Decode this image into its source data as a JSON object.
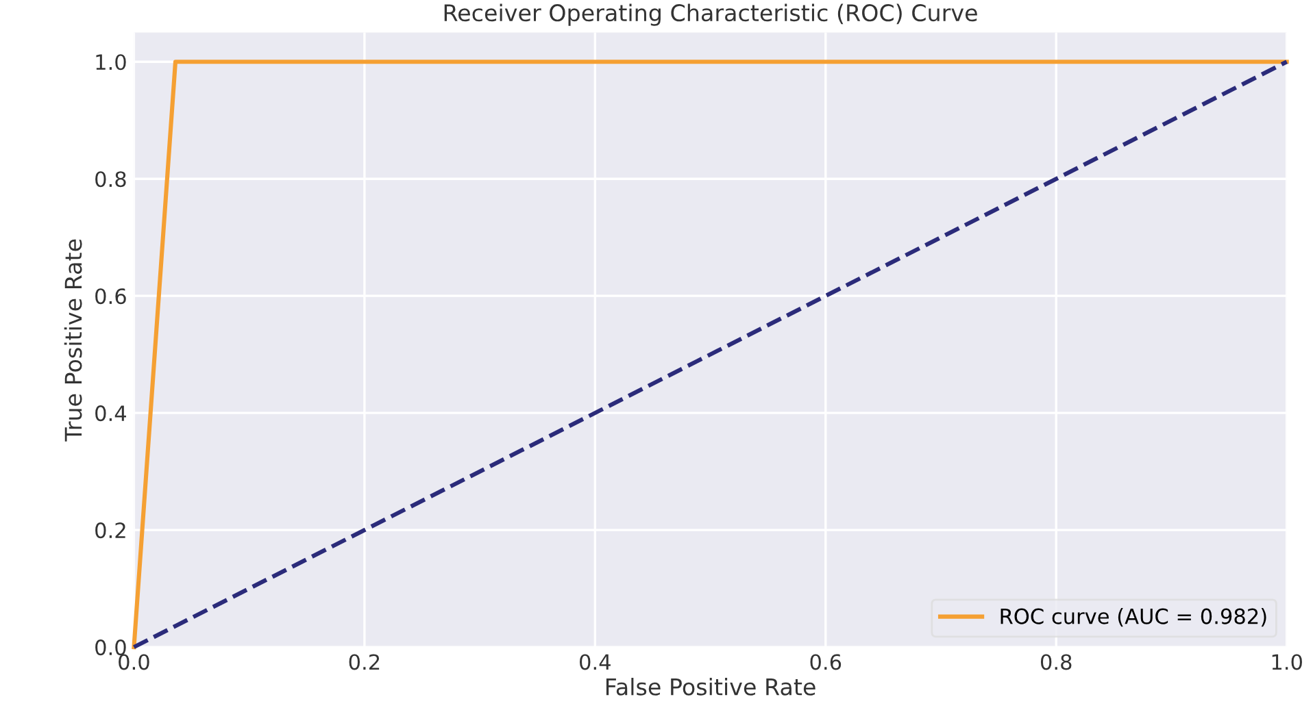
{
  "chart_data": {
    "type": "line",
    "title": "Receiver Operating Characteristic (ROC) Curve",
    "xlabel": "False Positive Rate",
    "ylabel": "True Positive Rate",
    "series": [
      {
        "name": "ROC curve (AUC = 0.982)",
        "color": "#f5a033",
        "x": [
          0,
          0.036,
          1
        ],
        "values": [
          0,
          1,
          1
        ],
        "line_style": "solid"
      },
      {
        "color": "#2b2b7a",
        "x": [
          0,
          1
        ],
        "values": [
          0,
          1
        ],
        "line_style": "dashed"
      }
    ],
    "xlim": [
      0,
      1
    ],
    "ylim": [
      0,
      1.05
    ],
    "xticks": [
      {
        "value": 0,
        "label": "0.0"
      },
      {
        "value": 0.2,
        "label": "0.2"
      },
      {
        "value": 0.4,
        "label": "0.4"
      },
      {
        "value": 0.6,
        "label": "0.6"
      },
      {
        "value": 0.8,
        "label": "0.8"
      },
      {
        "value": 1,
        "label": "1.0"
      }
    ],
    "yticks": [
      {
        "value": 0,
        "label": "0.0"
      },
      {
        "value": 0.2,
        "label": "0.2"
      },
      {
        "value": 0.4,
        "label": "0.4"
      },
      {
        "value": 0.6,
        "label": "0.6"
      },
      {
        "value": 0.8,
        "label": "0.8"
      },
      {
        "value": 1,
        "label": "1.0"
      }
    ],
    "grid": true,
    "legend": "lower right"
  }
}
